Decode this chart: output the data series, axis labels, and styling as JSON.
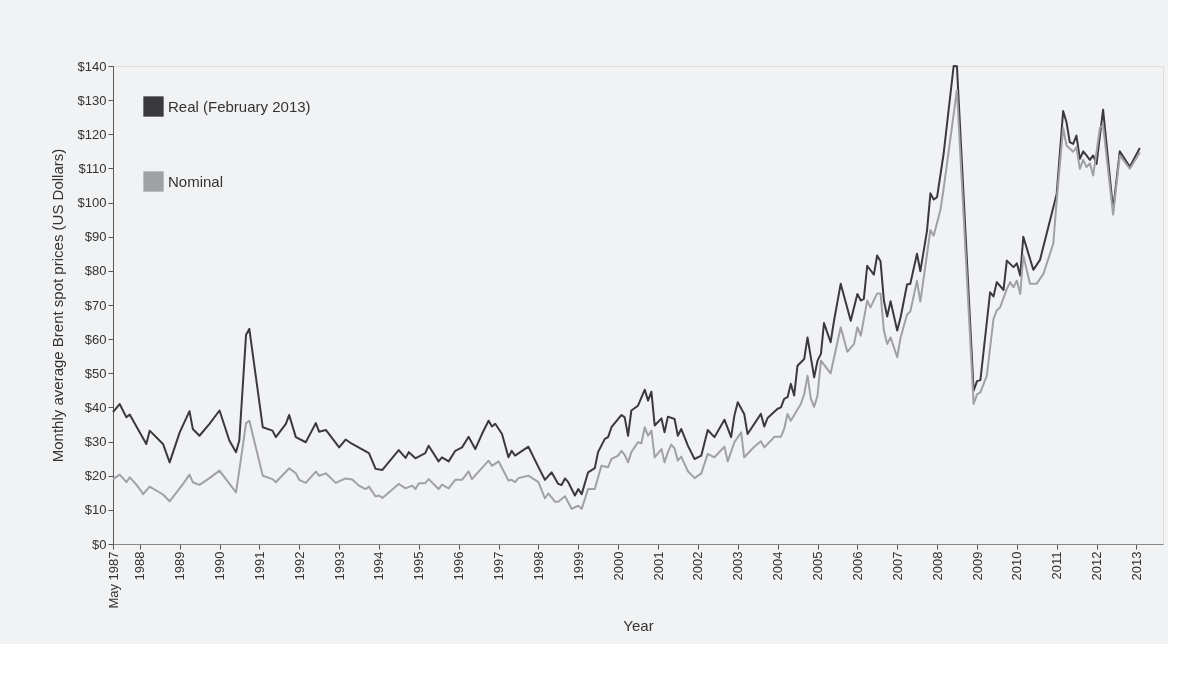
{
  "chart_data": {
    "type": "line",
    "xlabel": "Year",
    "ylabel": "Monthly average Brent spot prices (US Dollars)",
    "legend": "top left",
    "grid": false,
    "marker": "none",
    "line_style": "solid",
    "xlim": [
      "1987-05",
      "2013-09"
    ],
    "xticks": [
      {
        "value": "1987-05",
        "label": "May 1987"
      },
      {
        "value": "1988-01",
        "label": "1988"
      },
      {
        "value": "1989-01",
        "label": "1989"
      },
      {
        "value": "1990-01",
        "label": "1990"
      },
      {
        "value": "1991-01",
        "label": "1991"
      },
      {
        "value": "1992-01",
        "label": "1992"
      },
      {
        "value": "1993-01",
        "label": "1993"
      },
      {
        "value": "1994-01",
        "label": "1994"
      },
      {
        "value": "1995-01",
        "label": "1995"
      },
      {
        "value": "1996-01",
        "label": "1996"
      },
      {
        "value": "1997-01",
        "label": "1997"
      },
      {
        "value": "1998-01",
        "label": "1998"
      },
      {
        "value": "1999-01",
        "label": "1999"
      },
      {
        "value": "2000-01",
        "label": "2000"
      },
      {
        "value": "2001-01",
        "label": "2001"
      },
      {
        "value": "2002-01",
        "label": "2002"
      },
      {
        "value": "2003-01",
        "label": "2003"
      },
      {
        "value": "2004-01",
        "label": "2004"
      },
      {
        "value": "2005-01",
        "label": "2005"
      },
      {
        "value": "2006-01",
        "label": "2006"
      },
      {
        "value": "2007-01",
        "label": "2007"
      },
      {
        "value": "2008-01",
        "label": "2008"
      },
      {
        "value": "2009-01",
        "label": "2009"
      },
      {
        "value": "2010-01",
        "label": "2010"
      },
      {
        "value": "2011-01",
        "label": "2011"
      },
      {
        "value": "2012-01",
        "label": "2012"
      },
      {
        "value": "2013-01",
        "label": "2013"
      }
    ],
    "ylim": [
      0,
      140
    ],
    "yticks": [
      {
        "value": 0,
        "label": "$0"
      },
      {
        "value": 10,
        "label": "$10"
      },
      {
        "value": 20,
        "label": "$20"
      },
      {
        "value": 30,
        "label": "$30"
      },
      {
        "value": 40,
        "label": "$40"
      },
      {
        "value": 50,
        "label": "$50"
      },
      {
        "value": 60,
        "label": "$60"
      },
      {
        "value": 70,
        "label": "$70"
      },
      {
        "value": 80,
        "label": "$80"
      },
      {
        "value": 90,
        "label": "$90"
      },
      {
        "value": 100,
        "label": "$100"
      },
      {
        "value": 110,
        "label": "$110"
      },
      {
        "value": 120,
        "label": "$120"
      },
      {
        "value": 130,
        "label": "$130"
      },
      {
        "value": 140,
        "label": "$140"
      }
    ],
    "series": [
      {
        "name": "Real (February 2013)",
        "color": "#3a3a3c",
        "x": [
          "1987-05",
          "1987-07",
          "1987-09",
          "1987-10",
          "1988-03",
          "1988-04",
          "1988-08",
          "1988-10",
          "1989-01",
          "1989-04",
          "1989-05",
          "1989-07",
          "1989-10",
          "1990-01",
          "1990-04",
          "1990-06",
          "1990-07",
          "1990-09",
          "1990-10",
          "1991-02",
          "1991-05",
          "1991-06",
          "1991-09",
          "1991-10",
          "1991-12",
          "1992-03",
          "1992-06",
          "1992-07",
          "1992-09",
          "1993-01",
          "1993-03",
          "1993-05",
          "1993-10",
          "1993-12",
          "1994-02",
          "1994-07",
          "1994-09",
          "1994-10",
          "1994-12",
          "1995-03",
          "1995-04",
          "1995-07",
          "1995-08",
          "1995-10",
          "1995-12",
          "1996-02",
          "1996-04",
          "1996-06",
          "1996-08",
          "1996-10",
          "1996-11",
          "1996-12",
          "1997-02",
          "1997-04",
          "1997-05",
          "1997-06",
          "1997-10",
          "1998-01",
          "1998-03",
          "1998-05",
          "1998-07",
          "1998-08",
          "1998-09",
          "1998-10",
          "1998-12",
          "1999-01",
          "1999-02",
          "1999-04",
          "1999-06",
          "1999-07",
          "1999-09",
          "1999-10",
          "1999-11",
          "1999-12",
          "2000-02",
          "2000-03",
          "2000-04",
          "2000-05",
          "2000-07",
          "2000-09",
          "2000-10",
          "2000-11",
          "2000-12",
          "2001-02",
          "2001-03",
          "2001-04",
          "2001-06",
          "2001-07",
          "2001-08",
          "2001-10",
          "2001-12",
          "2002-02",
          "2002-04",
          "2002-06",
          "2002-09",
          "2002-11",
          "2002-12",
          "2003-01",
          "2003-03",
          "2003-04",
          "2003-08",
          "2003-09",
          "2003-10",
          "2004-01",
          "2004-02",
          "2004-03",
          "2004-04",
          "2004-05",
          "2004-06",
          "2004-07",
          "2004-09",
          "2004-10",
          "2004-12",
          "2005-01",
          "2005-02",
          "2005-03",
          "2005-05",
          "2005-06",
          "2005-08",
          "2005-11",
          "2006-01",
          "2006-02",
          "2006-03",
          "2006-04",
          "2006-06",
          "2006-07",
          "2006-08",
          "2006-09",
          "2006-10",
          "2006-11",
          "2007-01",
          "2007-02",
          "2007-04",
          "2007-05",
          "2007-07",
          "2007-08",
          "2007-10",
          "2007-11",
          "2007-12",
          "2008-01",
          "2008-03",
          "2008-06",
          "2008-07",
          "2008-12",
          "2009-01",
          "2009-02",
          "2009-05",
          "2009-06",
          "2009-07",
          "2009-09",
          "2009-10",
          "2009-12",
          "2010-01",
          "2010-02",
          "2010-03",
          "2010-06",
          "2010-08",
          "2011-01",
          "2011-03",
          "2011-04",
          "2011-05",
          "2011-06",
          "2011-07",
          "2011-08",
          "2011-09",
          "2011-10",
          "2011-11",
          "2011-12",
          "2012-01",
          "2012-03",
          "2012-06",
          "2012-08",
          "2012-11",
          "2013-02"
        ],
        "values": [
          38.6,
          41.0,
          37.1,
          37.9,
          29.3,
          33.2,
          29.3,
          23.9,
          32.7,
          38.9,
          33.7,
          31.7,
          35.2,
          39.1,
          30.3,
          26.9,
          30.3,
          61.3,
          63.0,
          34.2,
          33.2,
          31.3,
          35.2,
          37.8,
          31.3,
          29.8,
          35.4,
          32.9,
          33.4,
          28.3,
          30.6,
          29.3,
          26.6,
          22.0,
          21.7,
          27.5,
          25.2,
          26.9,
          25.1,
          26.6,
          28.8,
          24.2,
          25.4,
          24.2,
          27.3,
          28.3,
          31.4,
          27.8,
          32.2,
          36.1,
          34.4,
          35.2,
          32.2,
          25.4,
          27.3,
          25.9,
          28.5,
          22.5,
          18.8,
          21.0,
          17.6,
          17.3,
          19.2,
          18.1,
          14.2,
          16.1,
          14.6,
          21.0,
          22.2,
          26.9,
          30.8,
          31.3,
          34.2,
          35.4,
          37.8,
          37.1,
          31.7,
          39.1,
          40.5,
          45.2,
          42.0,
          44.6,
          34.7,
          36.8,
          32.7,
          37.3,
          36.6,
          31.7,
          33.7,
          28.8,
          24.9,
          25.9,
          33.4,
          31.3,
          36.4,
          31.3,
          37.6,
          41.5,
          38.1,
          32.2,
          38.1,
          34.4,
          36.9,
          39.6,
          40.0,
          42.5,
          43.0,
          46.9,
          43.5,
          52.2,
          54.2,
          60.5,
          48.8,
          53.7,
          55.7,
          64.7,
          59.1,
          65.4,
          76.2,
          65.4,
          73.2,
          71.3,
          71.8,
          81.5,
          78.9,
          84.5,
          82.8,
          71.3,
          66.6,
          71.1,
          62.5,
          66.4,
          76.0,
          76.2,
          85.0,
          79.9,
          91.8,
          102.7,
          100.9,
          101.6,
          114.3,
          140.0,
          139.9,
          44.9,
          47.7,
          48.0,
          73.7,
          72.5,
          76.7,
          74.4,
          83.0,
          81.1,
          82.2,
          78.6,
          90.0,
          80.3,
          83.2,
          102.5,
          126.8,
          123.5,
          117.7,
          117.2,
          119.6,
          112.8,
          115.0,
          113.8,
          112.5,
          113.8,
          111.3,
          127.2,
          97.9,
          115.0,
          110.5,
          116.0
        ]
      },
      {
        "name": "Nominal",
        "color": "#a0a1a4",
        "x": [
          "1987-05",
          "1987-07",
          "1987-09",
          "1987-10",
          "1987-12",
          "1988-01",
          "1988-02",
          "1988-04",
          "1988-08",
          "1988-10",
          "1989-02",
          "1989-04",
          "1989-05",
          "1989-07",
          "1989-10",
          "1990-01",
          "1990-06",
          "1990-07",
          "1990-09",
          "1990-10",
          "1991-02",
          "1991-05",
          "1991-06",
          "1991-10",
          "1991-12",
          "1992-01",
          "1992-03",
          "1992-06",
          "1992-07",
          "1992-09",
          "1992-12",
          "1993-03",
          "1993-05",
          "1993-07",
          "1993-09",
          "1993-10",
          "1993-12",
          "1994-01",
          "1994-02",
          "1994-07",
          "1994-09",
          "1994-11",
          "1994-12",
          "1995-01",
          "1995-03",
          "1995-04",
          "1995-07",
          "1995-08",
          "1995-10",
          "1995-12",
          "1996-02",
          "1996-04",
          "1996-05",
          "1996-10",
          "1996-11",
          "1997-01",
          "1997-04",
          "1997-05",
          "1997-06",
          "1997-07",
          "1997-10",
          "1998-01",
          "1998-03",
          "1998-04",
          "1998-06",
          "1998-07",
          "1998-09",
          "1998-11",
          "1999-01",
          "1999-02",
          "1999-04",
          "1999-06",
          "1999-08",
          "1999-10",
          "1999-11",
          "2000-01",
          "2000-02",
          "2000-03",
          "2000-04",
          "2000-05",
          "2000-07",
          "2000-08",
          "2000-09",
          "2000-10",
          "2000-11",
          "2000-12",
          "2001-02",
          "2001-03",
          "2001-04",
          "2001-05",
          "2001-06",
          "2001-07",
          "2001-08",
          "2001-10",
          "2001-12",
          "2002-02",
          "2002-04",
          "2002-06",
          "2002-09",
          "2002-10",
          "2002-12",
          "2003-02",
          "2003-03",
          "2003-06",
          "2003-08",
          "2003-09",
          "2003-11",
          "2003-12",
          "2004-02",
          "2004-03",
          "2004-04",
          "2004-05",
          "2004-08",
          "2004-09",
          "2004-10",
          "2004-11",
          "2004-12",
          "2005-01",
          "2005-02",
          "2005-05",
          "2005-08",
          "2005-10",
          "2005-12",
          "2006-01",
          "2006-02",
          "2006-04",
          "2006-05",
          "2006-07",
          "2006-08",
          "2006-09",
          "2006-10",
          "2006-11",
          "2007-01",
          "2007-02",
          "2007-04",
          "2007-05",
          "2007-07",
          "2007-08",
          "2007-11",
          "2007-12",
          "2008-02",
          "2008-03",
          "2008-07",
          "2008-12",
          "2009-01",
          "2009-02",
          "2009-04",
          "2009-06",
          "2009-07",
          "2009-08",
          "2009-10",
          "2009-11",
          "2009-12",
          "2010-01",
          "2010-02",
          "2010-03",
          "2010-05",
          "2010-07",
          "2010-09",
          "2010-12",
          "2011-01",
          "2011-03",
          "2011-04",
          "2011-06",
          "2011-07",
          "2011-08",
          "2011-09",
          "2011-10",
          "2011-11",
          "2011-12",
          "2012-02",
          "2012-03",
          "2012-06",
          "2012-08",
          "2012-11",
          "2013-02"
        ],
        "values": [
          19.0,
          20.3,
          18.1,
          19.5,
          17.4,
          16.1,
          14.6,
          16.8,
          14.5,
          12.5,
          17.6,
          20.3,
          18.1,
          17.3,
          19.3,
          21.5,
          15.1,
          21.5,
          35.4,
          36.1,
          20.0,
          19.0,
          18.1,
          22.2,
          20.7,
          18.8,
          17.9,
          21.2,
          20.0,
          20.7,
          17.9,
          19.2,
          18.9,
          17.1,
          16.1,
          16.8,
          13.9,
          14.2,
          13.5,
          17.6,
          16.3,
          17.1,
          16.1,
          17.8,
          17.8,
          19.0,
          16.1,
          17.4,
          16.3,
          18.8,
          18.8,
          21.3,
          19.0,
          24.4,
          22.9,
          24.2,
          18.6,
          18.8,
          18.1,
          19.3,
          20.0,
          18.1,
          13.4,
          14.8,
          12.4,
          12.4,
          14.0,
          10.3,
          11.2,
          10.3,
          16.1,
          16.1,
          22.9,
          22.5,
          24.9,
          25.9,
          27.3,
          26.1,
          23.9,
          26.9,
          29.8,
          29.5,
          34.2,
          31.7,
          33.2,
          25.4,
          27.8,
          23.9,
          26.9,
          29.1,
          28.0,
          24.4,
          25.6,
          21.3,
          19.3,
          20.7,
          26.4,
          25.4,
          28.5,
          24.2,
          29.8,
          32.7,
          25.4,
          28.5,
          30.1,
          28.3,
          30.3,
          31.4,
          31.4,
          33.7,
          38.1,
          36.1,
          41.0,
          43.9,
          49.3,
          42.5,
          40.2,
          43.5,
          53.7,
          50.0,
          63.5,
          56.3,
          58.6,
          63.5,
          61.0,
          71.3,
          69.3,
          73.4,
          73.4,
          62.5,
          58.6,
          60.5,
          54.7,
          60.5,
          67.2,
          68.1,
          77.1,
          71.0,
          92.0,
          90.3,
          97.9,
          104.0,
          133.0,
          41.0,
          43.8,
          44.4,
          49.3,
          65.9,
          68.4,
          69.3,
          74.7,
          76.7,
          75.2,
          77.1,
          73.2,
          84.5,
          76.2,
          76.2,
          79.1,
          88.0,
          100.6,
          121.9,
          116.7,
          114.9,
          116.2,
          109.9,
          112.5,
          110.4,
          111.5,
          107.9,
          121.9,
          122.6,
          96.5,
          113.8,
          109.9,
          114.7
        ]
      }
    ]
  }
}
